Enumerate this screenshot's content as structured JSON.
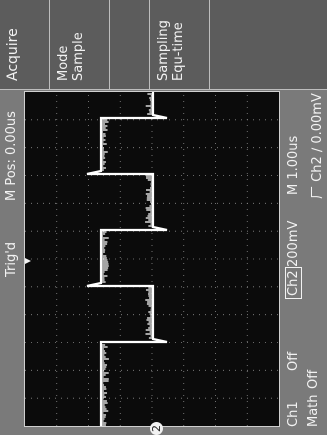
{
  "menu": {
    "title": "Acquire",
    "mode_label": "Mode",
    "mode_value": "Sample",
    "sampling_label": "Sampling",
    "sampling_value": "Equ-time"
  },
  "topbar": {
    "trigger_status": "Trig'd",
    "m_pos": "M Pos: 0.00us"
  },
  "bottombar": {
    "ch1_label": "Ch1",
    "ch1_value": "Off",
    "ch2_label": "Ch2",
    "ch2_value": "200mV",
    "timebase": "M 1.00us",
    "math_label": "Math",
    "math_value": "Off",
    "trigger_readout": "⼚ Ch2  ∕ 0.00mV"
  },
  "figure_number": "2",
  "colors": {
    "screen_bg": "#0b0b0b",
    "trace": "#ffffff",
    "text": "#f2f2f2"
  }
}
